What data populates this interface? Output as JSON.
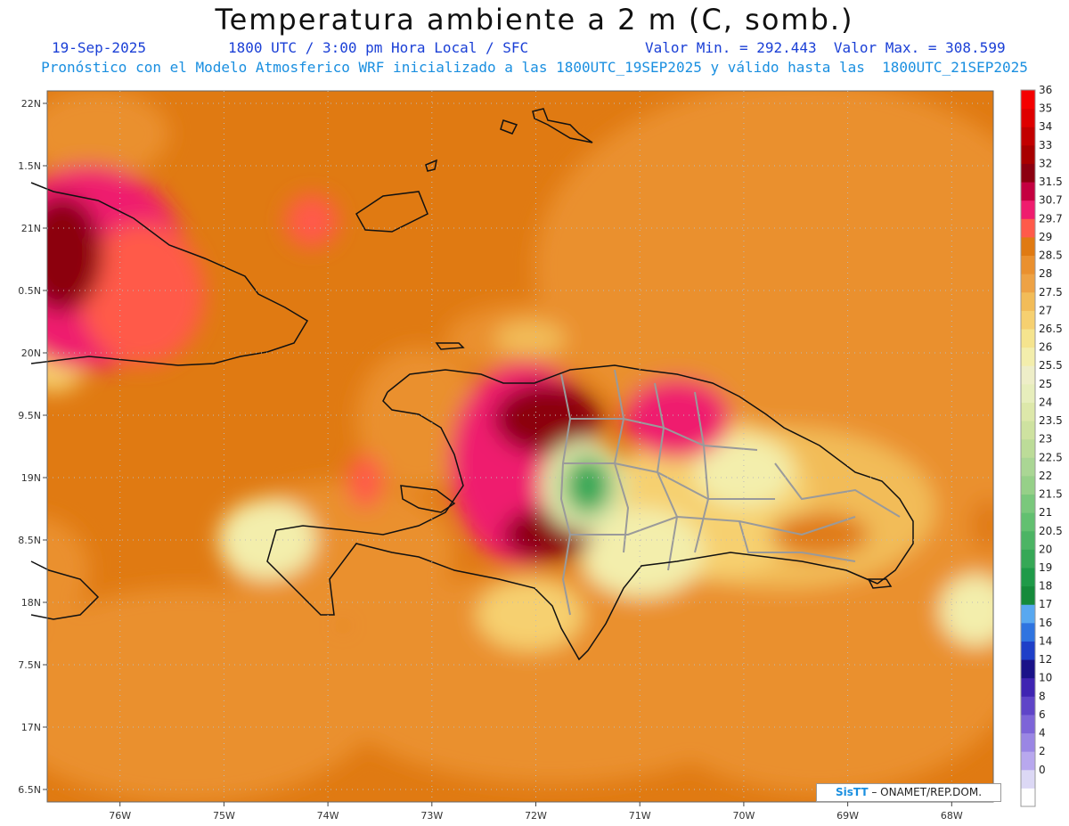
{
  "header": {
    "title": "Temperatura ambiente a 2 m (C, somb.)",
    "date": "19-Sep-2025",
    "time": "1800 UTC / 3:00 pm Hora Local / SFC",
    "minmax": "Valor Min. = 292.443  Valor Max. = 308.599",
    "subtitle": "Pronóstico con el Modelo Atmosferico WRF inicializado a las 1800UTC_19SEP2025 y válido hasta las  1800UTC_21SEP2025"
  },
  "credit": {
    "brand": "SisTT",
    "text": "– ONAMET/REP.DOM."
  },
  "colors": {
    "background_field": "#e07a12",
    "land_outline": "#111111",
    "province_outline": "#9a9a9a"
  },
  "chart_data": {
    "type": "heatmap",
    "lon_range": [
      -76.7,
      -67.6
    ],
    "lat_range": [
      16.4,
      22.1
    ],
    "lon_ticks": [
      {
        "v": -76,
        "label": "76W"
      },
      {
        "v": -75,
        "label": "75W"
      },
      {
        "v": -74,
        "label": "74W"
      },
      {
        "v": -73,
        "label": "73W"
      },
      {
        "v": -72,
        "label": "72W"
      },
      {
        "v": -71,
        "label": "71W"
      },
      {
        "v": -70,
        "label": "70W"
      },
      {
        "v": -69,
        "label": "69W"
      },
      {
        "v": -68,
        "label": "68W"
      }
    ],
    "lat_ticks": [
      {
        "v": 22,
        "label": "22N"
      },
      {
        "v": 21.5,
        "label": "1.5N"
      },
      {
        "v": 21,
        "label": "21N"
      },
      {
        "v": 20.5,
        "label": "0.5N"
      },
      {
        "v": 20,
        "label": "20N"
      },
      {
        "v": 19.5,
        "label": "9.5N"
      },
      {
        "v": 19,
        "label": "19N"
      },
      {
        "v": 18.5,
        "label": "8.5N"
      },
      {
        "v": 18,
        "label": "18N"
      },
      {
        "v": 17.5,
        "label": "7.5N"
      },
      {
        "v": 17,
        "label": "17N"
      },
      {
        "v": 16.5,
        "label": "6.5N"
      }
    ],
    "colorbar": [
      {
        "label": "",
        "color": "#ffffff"
      },
      {
        "label": "0",
        "color": "#dcd8f5"
      },
      {
        "label": "2",
        "color": "#b8a8ee"
      },
      {
        "label": "4",
        "color": "#9a86e4"
      },
      {
        "label": "6",
        "color": "#7d64d8"
      },
      {
        "label": "8",
        "color": "#5f44c8"
      },
      {
        "label": "10",
        "color": "#3f24b2"
      },
      {
        "label": "12",
        "color": "#1a1288"
      },
      {
        "label": "14",
        "color": "#1e3fc8"
      },
      {
        "label": "16",
        "color": "#2f74e0"
      },
      {
        "label": "17",
        "color": "#58a8f0"
      },
      {
        "label": "18",
        "color": "#158a3a"
      },
      {
        "label": "19",
        "color": "#1f9a48"
      },
      {
        "label": "20",
        "color": "#36a856"
      },
      {
        "label": "20.5",
        "color": "#4cb464"
      },
      {
        "label": "21",
        "color": "#62c070"
      },
      {
        "label": "21.5",
        "color": "#7ac87c"
      },
      {
        "label": "22",
        "color": "#96d088"
      },
      {
        "label": "22.5",
        "color": "#aad694"
      },
      {
        "label": "23",
        "color": "#bcdc98"
      },
      {
        "label": "23.5",
        "color": "#cee2a0"
      },
      {
        "label": "24",
        "color": "#dde8aa"
      },
      {
        "label": "25",
        "color": "#e7eebc"
      },
      {
        "label": "25.5",
        "color": "#eeeec8"
      },
      {
        "label": "26",
        "color": "#f3eeac"
      },
      {
        "label": "26.5",
        "color": "#f5e48e"
      },
      {
        "label": "27",
        "color": "#f6d070"
      },
      {
        "label": "27.5",
        "color": "#f2bc58"
      },
      {
        "label": "28",
        "color": "#eea244"
      },
      {
        "label": "28.5",
        "color": "#ea902e"
      },
      {
        "label": "29",
        "color": "#e07a12"
      },
      {
        "label": "29.7",
        "color": "#ff5a4a"
      },
      {
        "label": "30.7",
        "color": "#ef1c6e"
      },
      {
        "label": "31.5",
        "color": "#c40040"
      },
      {
        "label": "32",
        "color": "#8c0010"
      },
      {
        "label": "33",
        "color": "#a80000"
      },
      {
        "label": "34",
        "color": "#c20000"
      },
      {
        "label": "35",
        "color": "#de0000"
      },
      {
        "label": "36",
        "color": "#f40000"
      }
    ],
    "field_features": [
      {
        "name": "cuba-heat-core",
        "lon": -76.6,
        "lat": 20.8,
        "value": 33
      },
      {
        "name": "central-cool-spot",
        "lon": -71.5,
        "lat": 19.0,
        "value": 20
      },
      {
        "name": "nw-haiti-heat",
        "lon": -72.0,
        "lat": 19.6,
        "value": 32
      },
      {
        "name": "s-haiti-heat",
        "lon": -72.0,
        "lat": 18.5,
        "value": 32
      },
      {
        "name": "sw-haiti-cool",
        "lon": -74.4,
        "lat": 18.5,
        "value": 26
      },
      {
        "name": "sea-cool-south",
        "lon": -72.0,
        "lat": 17.9,
        "value": 26.5
      },
      {
        "name": "east-dr-warm",
        "lon": -69.0,
        "lat": 18.5,
        "value": 29
      }
    ]
  }
}
